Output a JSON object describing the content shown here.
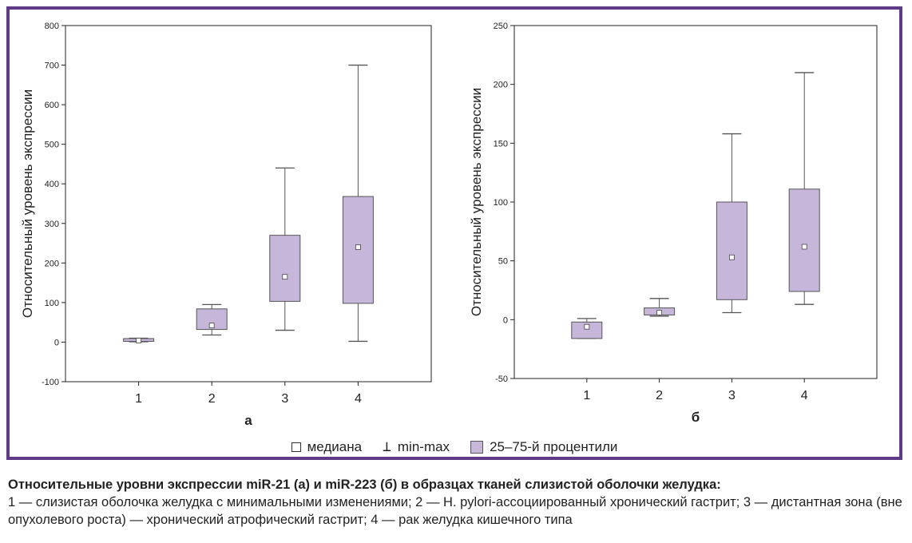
{
  "chart_data": [
    {
      "type": "box",
      "panel_label": "а",
      "ylabel": "Относительный уровень экспрессии",
      "ylim": [
        -100,
        800
      ],
      "yticks": [
        -100,
        0,
        100,
        200,
        300,
        400,
        500,
        600,
        700,
        800
      ],
      "categories": [
        "1",
        "2",
        "3",
        "4"
      ],
      "boxes": [
        {
          "category": "1",
          "min": 1,
          "q1": 2,
          "median": 4,
          "q3": 9,
          "max": 10
        },
        {
          "category": "2",
          "min": 18,
          "q1": 32,
          "median": 42,
          "q3": 84,
          "max": 95
        },
        {
          "category": "3",
          "min": 30,
          "q1": 103,
          "median": 165,
          "q3": 270,
          "max": 440
        },
        {
          "category": "4",
          "min": 2,
          "q1": 98,
          "median": 240,
          "q3": 368,
          "max": 700
        }
      ]
    },
    {
      "type": "box",
      "panel_label": "б",
      "ylabel": "Относительный уровень экспрессии",
      "ylim": [
        -50,
        250
      ],
      "yticks": [
        -50,
        0,
        50,
        100,
        150,
        200,
        250
      ],
      "categories": [
        "1",
        "2",
        "3",
        "4"
      ],
      "boxes": [
        {
          "category": "1",
          "min": -16,
          "q1": -16,
          "median": -6,
          "q3": -2,
          "max": 1
        },
        {
          "category": "2",
          "min": 3,
          "q1": 4,
          "median": 6,
          "q3": 10,
          "max": 18
        },
        {
          "category": "3",
          "min": 6,
          "q1": 17,
          "median": 53,
          "q3": 100,
          "max": 158
        },
        {
          "category": "4",
          "min": 13,
          "q1": 24,
          "median": 62,
          "q3": 111,
          "max": 210
        }
      ]
    }
  ],
  "legend": {
    "median": "медиана",
    "minmax": "min-max",
    "percentiles": "25–75-й процентили"
  },
  "caption": {
    "title": "Относительные уровни экспрессии miR-21 (а) и miR-223 (б) в образцах тканей слизистой оболочки желудка:",
    "text": "1 — слизистая оболочка желудка с минимальными изменениями; 2 — H. pylori-ассоциированный хронический гастрит; 3 — дистантная зона (вне опухолевого роста) — хронический атрофический гастрит; 4 — рак желудка кишечного типа"
  },
  "colors": {
    "frame": "#5e3a87",
    "box_fill": "#c6b6da",
    "line": "#555555"
  }
}
